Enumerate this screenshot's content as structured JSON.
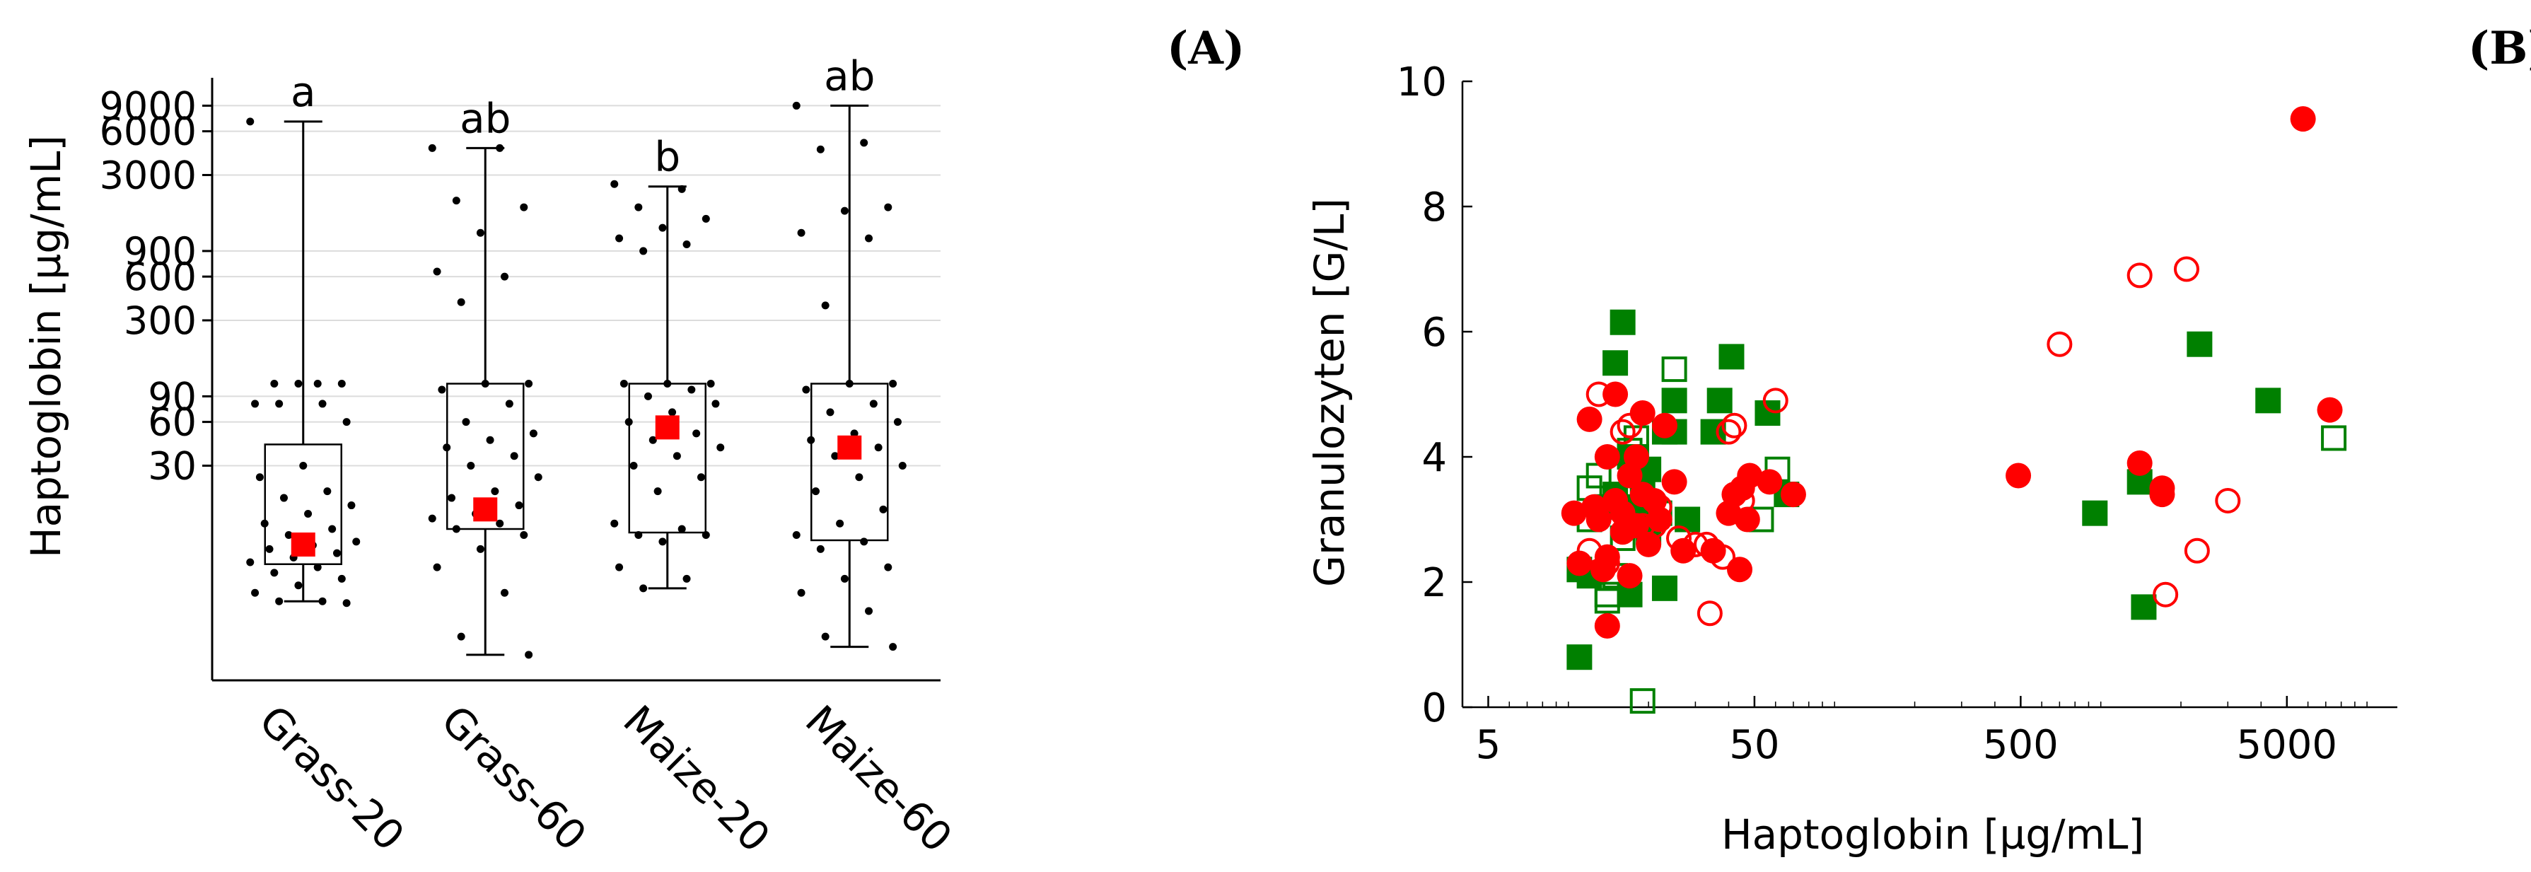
{
  "panel_labels": {
    "a": "(A)",
    "b": "(B)"
  },
  "colors": {
    "red": "#ff0000",
    "green": "#008000",
    "grid": "#dcdcdc",
    "axis": "#000000",
    "jitter": "#000000"
  },
  "chart_data": [
    {
      "type": "box",
      "panel": "(A)",
      "ylabel": "Haptoglobin [µg/mL]",
      "yscale": "log",
      "ylim": [
        1,
        14000
      ],
      "yticks": [
        30,
        60,
        90,
        300,
        600,
        900,
        3000,
        6000,
        9000
      ],
      "yticklabels": [
        "30",
        "60",
        "90",
        "300",
        "600",
        "900",
        "3000",
        "6000",
        "9000"
      ],
      "categories": [
        "Grass-20",
        "Grass-60",
        "Maize-20",
        "Maize-60"
      ],
      "letters": [
        "a",
        "ab",
        "b",
        "ab"
      ],
      "boxes": [
        {
          "whisker_low": 3.5,
          "q1": 6.3,
          "median": 8.6,
          "mean": 8.6,
          "q3": 42,
          "whisker_high": 7000
        },
        {
          "whisker_low": 1.5,
          "q1": 11,
          "median": 15,
          "mean": 15,
          "q3": 110,
          "whisker_high": 4600
        },
        {
          "whisker_low": 4.3,
          "q1": 10.4,
          "median": 55,
          "mean": 55,
          "q3": 110,
          "whisker_high": 2500
        },
        {
          "whisker_low": 1.7,
          "q1": 9.2,
          "median": 40,
          "mean": 40,
          "q3": 110,
          "whisker_high": 9000
        }
      ],
      "points": [
        [
          7000,
          110,
          110,
          110,
          110,
          80,
          80,
          80,
          60,
          30,
          25,
          20,
          18,
          16,
          14,
          12,
          11,
          10,
          9,
          8.5,
          8,
          7.5,
          7,
          6.5,
          6,
          5.5,
          5,
          4.5,
          4,
          3.5,
          3.5,
          3.4
        ],
        [
          4600,
          4600,
          2000,
          1800,
          1200,
          650,
          600,
          400,
          110,
          110,
          100,
          80,
          60,
          50,
          45,
          40,
          35,
          30,
          25,
          20,
          18,
          16,
          14,
          13,
          12,
          11,
          10,
          8,
          6,
          4,
          2,
          1.5
        ],
        [
          2600,
          2400,
          1800,
          1500,
          1300,
          1100,
          1000,
          900,
          110,
          110,
          110,
          100,
          90,
          80,
          70,
          60,
          50,
          45,
          40,
          35,
          30,
          25,
          20,
          12,
          11,
          10,
          10,
          9,
          6,
          5,
          4.3
        ],
        [
          9000,
          5000,
          4500,
          1800,
          1700,
          1200,
          1100,
          380,
          110,
          110,
          100,
          80,
          70,
          60,
          50,
          45,
          40,
          35,
          30,
          25,
          20,
          15,
          12,
          10,
          9,
          8,
          6,
          5,
          4,
          3,
          2,
          1.7
        ]
      ]
    },
    {
      "type": "scatter",
      "panel": "(B)",
      "xlabel": "Haptoglobin [µg/mL]",
      "ylabel": "Granulozyten [G/L]",
      "xscale": "log",
      "xlim": [
        4,
        13000
      ],
      "ylim": [
        0,
        10
      ],
      "xticks": [
        5,
        50,
        500,
        5000
      ],
      "xticklabels": [
        "5",
        "50",
        "500",
        "5000"
      ],
      "yticks": [
        0,
        2,
        4,
        6,
        8,
        10
      ],
      "yticklabels": [
        "0",
        "2",
        "4",
        "6",
        "8",
        "10"
      ],
      "series": [
        {
          "name": "green-filled-square",
          "marker": "square",
          "filled": true,
          "color": "#008000",
          "points": [
            [
              11,
              0.8
            ],
            [
              11,
              2.2
            ],
            [
              12,
              2.1
            ],
            [
              14,
              3.2
            ],
            [
              15,
              3.4
            ],
            [
              15,
              5.5
            ],
            [
              16,
              6.15
            ],
            [
              17,
              1.8
            ],
            [
              17,
              3.2
            ],
            [
              17,
              4.0
            ],
            [
              18,
              4.0
            ],
            [
              19,
              3.0
            ],
            [
              19,
              3.5
            ],
            [
              20,
              2.8
            ],
            [
              20,
              3.8
            ],
            [
              23,
              1.9
            ],
            [
              23,
              4.4
            ],
            [
              25,
              4.4
            ],
            [
              25,
              4.9
            ],
            [
              28,
              3.0
            ],
            [
              35,
              4.4
            ],
            [
              37,
              4.9
            ],
            [
              41,
              5.6
            ],
            [
              56,
              4.7
            ],
            [
              66,
              3.4
            ],
            [
              950,
              3.1
            ],
            [
              1400,
              3.6
            ],
            [
              1450,
              1.6
            ],
            [
              2350,
              5.8
            ],
            [
              4250,
              4.9
            ]
          ]
        },
        {
          "name": "green-open-square",
          "marker": "square",
          "filled": false,
          "color": "#008000",
          "points": [
            [
              12,
              3.0
            ],
            [
              12,
              3.5
            ],
            [
              13,
              3.7
            ],
            [
              14,
              1.7
            ],
            [
              14,
              1.8
            ],
            [
              15,
              2.1
            ],
            [
              16,
              2.7
            ],
            [
              17,
              4.1
            ],
            [
              18,
              4.3
            ],
            [
              19,
              0.1
            ],
            [
              20,
              3.2
            ],
            [
              22,
              3.1
            ],
            [
              25,
              5.4
            ],
            [
              53,
              3.0
            ],
            [
              61,
              3.8
            ],
            [
              7500,
              4.3
            ]
          ]
        },
        {
          "name": "red-filled-circle",
          "marker": "circle",
          "filled": true,
          "color": "#ff0000",
          "points": [
            [
              10.5,
              3.1
            ],
            [
              11,
              2.3
            ],
            [
              12,
              4.6
            ],
            [
              12.5,
              3.2
            ],
            [
              13,
              3.0
            ],
            [
              13.5,
              2.2
            ],
            [
              14,
              1.3
            ],
            [
              14,
              2.4
            ],
            [
              14,
              4.0
            ],
            [
              15,
              3.3
            ],
            [
              15,
              5.0
            ],
            [
              16,
              2.8
            ],
            [
              16,
              3.1
            ],
            [
              17,
              2.1
            ],
            [
              17,
              3.7
            ],
            [
              18,
              2.9
            ],
            [
              18,
              4.0
            ],
            [
              19,
              3.4
            ],
            [
              19,
              4.7
            ],
            [
              20,
              2.6
            ],
            [
              21,
              3.3
            ],
            [
              22,
              3.0
            ],
            [
              23,
              4.5
            ],
            [
              25,
              3.6
            ],
            [
              27,
              2.5
            ],
            [
              35,
              2.5
            ],
            [
              40,
              3.1
            ],
            [
              42,
              3.4
            ],
            [
              44,
              2.2
            ],
            [
              45,
              3.5
            ],
            [
              47,
              3.0
            ],
            [
              48,
              3.7
            ],
            [
              57,
              3.6
            ],
            [
              70,
              3.4
            ],
            [
              490,
              3.7
            ],
            [
              1400,
              3.9
            ],
            [
              1700,
              3.5
            ],
            [
              1700,
              3.4
            ],
            [
              5750,
              9.4
            ],
            [
              7250,
              4.75
            ]
          ]
        },
        {
          "name": "red-open-circle",
          "marker": "circle",
          "filled": false,
          "color": "#ff0000",
          "points": [
            [
              12,
              2.5
            ],
            [
              13,
              5.0
            ],
            [
              14,
              2.3
            ],
            [
              16,
              4.4
            ],
            [
              17,
              4.5
            ],
            [
              19,
              2.9
            ],
            [
              21,
              2.9
            ],
            [
              22,
              3.2
            ],
            [
              26,
              2.7
            ],
            [
              30,
              2.6
            ],
            [
              33,
              2.6
            ],
            [
              34,
              1.5
            ],
            [
              38,
              2.4
            ],
            [
              40,
              4.4
            ],
            [
              42,
              4.5
            ],
            [
              45,
              3.3
            ],
            [
              60,
              4.9
            ],
            [
              700,
              5.8
            ],
            [
              1400,
              6.9
            ],
            [
              1750,
              1.8
            ],
            [
              2100,
              7.0
            ],
            [
              2300,
              2.5
            ],
            [
              3000,
              3.3
            ]
          ]
        }
      ]
    }
  ]
}
